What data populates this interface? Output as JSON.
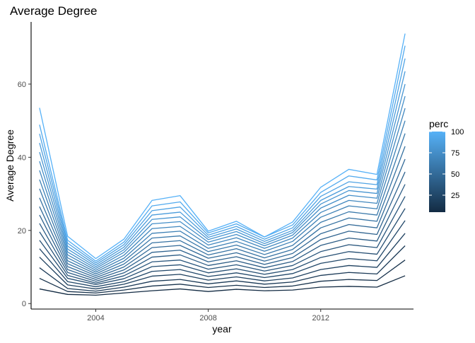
{
  "chart_data": {
    "type": "line",
    "title": "Average Degree",
    "xlabel": "year",
    "ylabel": "Average Degree",
    "xlim": [
      2001.7,
      2015.3
    ],
    "ylim": [
      -1.5,
      77
    ],
    "x_ticks": [
      2004,
      2008,
      2012
    ],
    "x_tick_labels": [
      "2004",
      "2008",
      "2012"
    ],
    "y_ticks": [
      0,
      20,
      40,
      60
    ],
    "y_tick_labels": [
      "0",
      "20",
      "40",
      "60"
    ],
    "grid": false,
    "legend": {
      "title": "perc",
      "position": "right",
      "kind": "colorbar",
      "ticks": [
        25,
        50,
        75,
        100
      ],
      "tick_labels": [
        "25",
        "50",
        "75",
        "100"
      ],
      "range": [
        5,
        100
      ],
      "color_low": "#132B43",
      "color_high": "#56B1F7"
    },
    "x": [
      2002,
      2003,
      2004,
      2005,
      2006,
      2007,
      2008,
      2009,
      2010,
      2011,
      2012,
      2013,
      2014,
      2015
    ],
    "series": [
      {
        "perc": 5,
        "values": [
          4.0,
          2.5,
          2.3,
          2.9,
          3.5,
          4.0,
          3.3,
          3.9,
          3.5,
          3.7,
          4.5,
          4.7,
          4.5,
          7.6
        ]
      },
      {
        "perc": 10,
        "values": [
          6.9,
          3.3,
          2.9,
          3.7,
          4.8,
          5.3,
          4.4,
          5.0,
          4.4,
          4.8,
          6.1,
          6.6,
          6.3,
          11.9
        ]
      },
      {
        "perc": 15,
        "values": [
          9.8,
          4.1,
          3.4,
          4.5,
          6.1,
          6.6,
          5.4,
          6.2,
          5.3,
          5.9,
          7.7,
          8.5,
          8.1,
          15.8
        ]
      },
      {
        "perc": 20,
        "values": [
          12.7,
          5.1,
          4.0,
          5.3,
          7.5,
          8.0,
          6.4,
          7.3,
          6.2,
          7.0,
          9.3,
          10.4,
          9.9,
          19.2
        ]
      },
      {
        "perc": 25,
        "values": [
          15.0,
          6.0,
          4.6,
          6.0,
          8.8,
          9.3,
          7.4,
          8.4,
          7.1,
          8.2,
          11.0,
          12.3,
          11.7,
          22.7
        ]
      },
      {
        "perc": 30,
        "values": [
          17.3,
          6.9,
          5.2,
          6.8,
          10.1,
          10.6,
          8.4,
          9.5,
          8.0,
          9.3,
          12.6,
          14.2,
          13.5,
          26.0
        ]
      },
      {
        "perc": 35,
        "values": [
          19.6,
          7.7,
          5.6,
          7.6,
          11.4,
          11.9,
          9.4,
          10.6,
          8.9,
          10.4,
          14.2,
          16.1,
          15.3,
          29.3
        ]
      },
      {
        "perc": 40,
        "values": [
          21.9,
          8.5,
          6.1,
          8.4,
          12.7,
          13.3,
          10.4,
          11.7,
          9.8,
          11.5,
          15.9,
          17.9,
          17.1,
          32.6
        ]
      },
      {
        "perc": 45,
        "values": [
          24.2,
          9.3,
          6.6,
          9.2,
          14.0,
          14.6,
          11.4,
          12.8,
          10.7,
          12.6,
          17.5,
          19.8,
          18.9,
          36.0
        ]
      },
      {
        "perc": 50,
        "values": [
          26.5,
          10.1,
          7.1,
          10.0,
          15.3,
          15.9,
          12.4,
          13.9,
          11.6,
          13.7,
          19.1,
          21.6,
          20.7,
          39.5
        ]
      },
      {
        "perc": 55,
        "values": [
          28.9,
          10.9,
          7.6,
          10.8,
          16.6,
          17.2,
          13.3,
          15.0,
          12.5,
          14.8,
          20.7,
          23.4,
          22.5,
          43.0
        ]
      },
      {
        "perc": 60,
        "values": [
          31.4,
          11.7,
          8.1,
          11.6,
          17.9,
          18.5,
          14.2,
          16.0,
          13.4,
          15.9,
          22.2,
          25.1,
          24.2,
          46.5
        ]
      },
      {
        "perc": 65,
        "values": [
          33.9,
          12.5,
          8.6,
          12.4,
          19.2,
          19.8,
          15.1,
          17.0,
          14.3,
          17.0,
          23.6,
          26.7,
          25.9,
          50.0
        ]
      },
      {
        "perc": 70,
        "values": [
          36.4,
          13.3,
          9.1,
          13.2,
          20.5,
          21.1,
          16.0,
          18.0,
          15.1,
          17.9,
          24.9,
          28.2,
          27.4,
          53.4
        ]
      },
      {
        "perc": 75,
        "values": [
          38.9,
          14.1,
          9.6,
          14.0,
          21.8,
          22.4,
          16.8,
          18.9,
          15.8,
          18.7,
          26.1,
          29.6,
          28.8,
          56.7
        ]
      },
      {
        "perc": 80,
        "values": [
          41.4,
          14.9,
          10.1,
          14.7,
          23.0,
          23.7,
          17.5,
          19.7,
          16.4,
          19.4,
          27.2,
          30.9,
          30.1,
          60.0
        ]
      },
      {
        "perc": 85,
        "values": [
          43.9,
          15.7,
          10.6,
          15.4,
          24.2,
          25.0,
          18.1,
          20.4,
          17.0,
          20.0,
          28.2,
          32.0,
          31.3,
          63.5
        ]
      },
      {
        "perc": 90,
        "values": [
          46.4,
          16.5,
          11.1,
          16.1,
          25.4,
          26.4,
          18.7,
          21.1,
          17.6,
          20.7,
          29.3,
          33.3,
          32.5,
          67.0
        ]
      },
      {
        "perc": 95,
        "values": [
          48.9,
          17.3,
          11.6,
          16.8,
          26.7,
          27.8,
          19.3,
          21.8,
          18.2,
          21.5,
          30.4,
          34.9,
          33.8,
          70.5
        ]
      },
      {
        "perc": 100,
        "values": [
          53.5,
          18.4,
          12.3,
          17.6,
          28.2,
          29.5,
          19.8,
          22.5,
          18.2,
          22.3,
          31.8,
          36.7,
          35.3,
          73.8
        ]
      }
    ]
  }
}
